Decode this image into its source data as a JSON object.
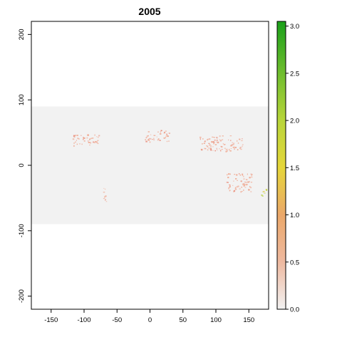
{
  "map": {
    "title": "2005",
    "x_ticks": [
      "-150",
      "-100",
      "-50",
      "0",
      "50",
      "100",
      "150"
    ],
    "x_tick_values": [
      -150,
      -100,
      -50,
      0,
      50,
      100,
      150
    ],
    "y_ticks": [
      "-200",
      "-100",
      "0",
      "100",
      "200"
    ],
    "y_tick_values": [
      -200,
      -100,
      0,
      100,
      200
    ],
    "xlim": [
      -180,
      180
    ],
    "ylim": [
      -220,
      220
    ],
    "raster_extent": {
      "lat_min": -90,
      "lat_max": 90
    },
    "colors": {
      "background_raster": "#f2f2f2",
      "low_value": "#f0a890",
      "high_value": "#1aa01a",
      "frame": "#000000"
    },
    "features": [
      {
        "name": "north-america",
        "lon": [
          -118,
          -78
        ],
        "lat": [
          30,
          48
        ]
      },
      {
        "name": "europe-med",
        "lon": [
          -8,
          30
        ],
        "lat": [
          36,
          54
        ]
      },
      {
        "name": "central-asia",
        "lon": [
          75,
          140
        ],
        "lat": [
          22,
          46
        ]
      },
      {
        "name": "south-america",
        "lon": [
          -72,
          -66
        ],
        "lat": [
          -55,
          -32
        ]
      },
      {
        "name": "australia",
        "lon": [
          115,
          155
        ],
        "lat": [
          -40,
          -12
        ]
      },
      {
        "name": "new-zealand",
        "lon": [
          168,
          178
        ],
        "lat": [
          -47,
          -35
        ]
      }
    ]
  },
  "legend": {
    "ticks": [
      "0.0",
      "0.5",
      "1.0",
      "1.5",
      "2.0",
      "2.5",
      "3.0"
    ],
    "tick_values": [
      0,
      0.5,
      1.0,
      1.5,
      2.0,
      2.5,
      3.0
    ],
    "range": [
      0,
      3.05
    ],
    "color_stops": [
      {
        "value": 0.0,
        "color": "#f2f2f2"
      },
      {
        "value": 0.5,
        "color": "#eeb9a0"
      },
      {
        "value": 1.0,
        "color": "#eba86a"
      },
      {
        "value": 1.5,
        "color": "#e6d63a"
      },
      {
        "value": 2.0,
        "color": "#b8d53a"
      },
      {
        "value": 2.5,
        "color": "#6fbd2e"
      },
      {
        "value": 3.05,
        "color": "#1aa01a"
      }
    ]
  }
}
